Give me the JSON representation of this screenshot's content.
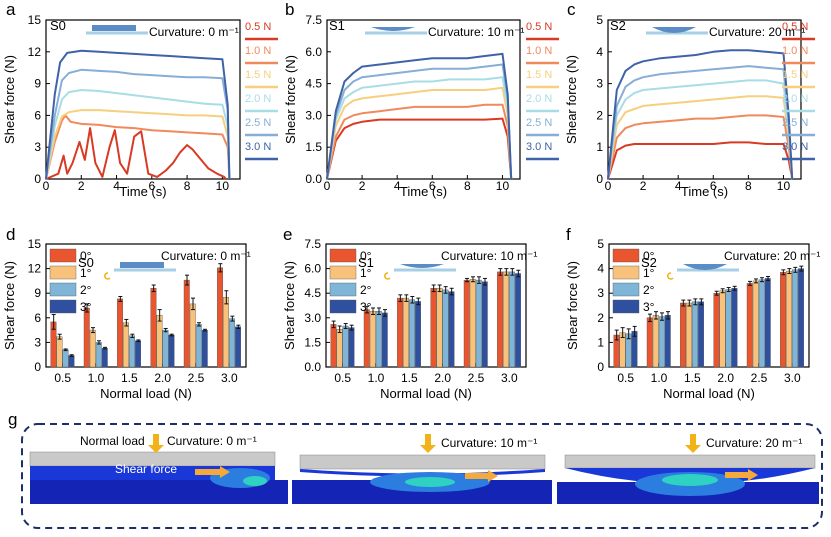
{
  "colors": {
    "c0": "#d93a23",
    "c1": "#f08a5c",
    "c2": "#f6cf7f",
    "c3": "#a9dde5",
    "c4": "#86aed6",
    "c5": "#3f63a8",
    "bar0": "#e8552f",
    "bar1": "#f8c27a",
    "bar2": "#7fb5d6",
    "bar3": "#2f4f9f"
  },
  "chart_data": [
    {
      "panel": "a",
      "type": "line",
      "sample": "S0",
      "curvature": "Curvature: 0 m⁻¹",
      "xlabel": "Time (s)",
      "ylabel": "Shear force (N)",
      "xlim": [
        0,
        11
      ],
      "ylim": [
        0,
        15
      ],
      "xticks": [
        "0",
        "2",
        "4",
        "6",
        "8",
        "10"
      ],
      "yticks": [
        "0",
        "3",
        "6",
        "9",
        "12",
        "15"
      ],
      "legend": [
        "0.5 N",
        "1.0 N",
        "1.5 N",
        "2.0 N",
        "2.5 N",
        "3.0 N"
      ],
      "series": [
        {
          "name": "0.5 N",
          "x": [
            0,
            0.7,
            1.0,
            1.2,
            1.5,
            1.9,
            2.2,
            2.5,
            2.8,
            3.2,
            3.6,
            3.9,
            4.2,
            4.6,
            5.0,
            5.4,
            5.8,
            6.3,
            6.8,
            7.2,
            7.6,
            8.0,
            8.3,
            8.7,
            9.2,
            9.7,
            10.1,
            10.2
          ],
          "y": [
            0,
            0.5,
            2.2,
            0.5,
            1.5,
            3.5,
            1.8,
            4.8,
            1.5,
            0.2,
            3.0,
            4.6,
            1.5,
            0.5,
            4.0,
            4.5,
            0.5,
            0.2,
            0.8,
            1.5,
            2.5,
            3.2,
            2.8,
            2.0,
            1.0,
            0.5,
            0.2,
            0
          ]
        },
        {
          "name": "1.0 N",
          "x": [
            0,
            0.5,
            0.9,
            1.1,
            1.4,
            2,
            3,
            4,
            5,
            6,
            7,
            8,
            9,
            10,
            10.3,
            10.4
          ],
          "y": [
            0,
            3.5,
            5.5,
            6.0,
            5.4,
            5.2,
            5.1,
            4.9,
            4.8,
            4.6,
            4.5,
            4.4,
            4.3,
            4.2,
            3.0,
            0
          ]
        },
        {
          "name": "1.5 N",
          "x": [
            0,
            0.5,
            0.9,
            1.3,
            2,
            3,
            4,
            5,
            6,
            7,
            8,
            9,
            10,
            10.3,
            10.4
          ],
          "y": [
            0,
            4.0,
            5.9,
            6.3,
            6.5,
            6.5,
            6.4,
            6.3,
            6.2,
            6.1,
            6.0,
            6.0,
            5.9,
            4.0,
            0
          ]
        },
        {
          "name": "2.0 N",
          "x": [
            0,
            0.5,
            0.9,
            1.3,
            2,
            3,
            4,
            5,
            6,
            7,
            8,
            9,
            10,
            10.3,
            10.4
          ],
          "y": [
            0,
            5.0,
            7.5,
            8.2,
            8.4,
            8.3,
            8.1,
            7.9,
            7.7,
            7.5,
            7.3,
            7.1,
            7.0,
            5.0,
            0
          ]
        },
        {
          "name": "2.5 N",
          "x": [
            0,
            0.5,
            0.9,
            1.3,
            2,
            3,
            4,
            5,
            6,
            7,
            8,
            9,
            10,
            10.3,
            10.4
          ],
          "y": [
            0,
            6.0,
            9.3,
            10.0,
            10.3,
            10.2,
            10.1,
            9.9,
            9.8,
            9.7,
            9.6,
            9.6,
            9.5,
            6.5,
            0
          ]
        },
        {
          "name": "3.0 N",
          "x": [
            0,
            0.5,
            0.8,
            1.2,
            2,
            3,
            4,
            5,
            6,
            7,
            8,
            9,
            10,
            10.3,
            10.4
          ],
          "y": [
            0,
            8.0,
            11.0,
            11.9,
            12.1,
            12.0,
            11.9,
            11.8,
            11.7,
            11.6,
            11.5,
            11.4,
            11.3,
            7.0,
            0
          ]
        }
      ]
    },
    {
      "panel": "b",
      "type": "line",
      "sample": "S1",
      "curvature": "Curvature: 10 m⁻¹",
      "xlabel": "Time (s)",
      "ylabel": "Shear force (N)",
      "xlim": [
        0,
        11
      ],
      "ylim": [
        0,
        7.5
      ],
      "xticks": [
        "0",
        "2",
        "4",
        "6",
        "8",
        "10"
      ],
      "yticks": [
        "0.0",
        "1.5",
        "3.0",
        "4.5",
        "6.0",
        "7.5"
      ],
      "legend": [
        "0.5 N",
        "1.0 N",
        "1.5 N",
        "2.0 N",
        "2.5 N",
        "3.0 N"
      ],
      "series": [
        {
          "name": "0.5 N",
          "x": [
            0,
            0.5,
            1.0,
            1.5,
            2,
            3,
            4,
            5,
            6,
            7,
            8,
            9,
            10,
            10.3,
            10.5
          ],
          "y": [
            0,
            1.8,
            2.4,
            2.6,
            2.7,
            2.8,
            2.8,
            2.8,
            2.8,
            2.8,
            2.8,
            2.8,
            2.85,
            2.0,
            0
          ]
        },
        {
          "name": "1.0 N",
          "x": [
            0,
            0.5,
            1.0,
            1.5,
            2,
            3,
            4,
            5,
            6,
            7,
            8,
            9,
            10,
            10.3,
            10.5
          ],
          "y": [
            0,
            2.0,
            2.8,
            3.0,
            3.1,
            3.2,
            3.3,
            3.4,
            3.4,
            3.4,
            3.4,
            3.5,
            3.5,
            2.5,
            0
          ]
        },
        {
          "name": "1.5 N",
          "x": [
            0,
            0.5,
            1.0,
            1.5,
            2,
            3,
            4,
            5,
            6,
            7,
            8,
            9,
            10,
            10.3,
            10.5
          ],
          "y": [
            0,
            2.5,
            3.4,
            3.7,
            3.8,
            3.9,
            4.0,
            4.1,
            4.2,
            4.2,
            4.2,
            4.2,
            4.3,
            3.0,
            0
          ]
        },
        {
          "name": "2.0 N",
          "x": [
            0,
            0.5,
            1.0,
            1.5,
            2,
            3,
            4,
            5,
            6,
            7,
            8,
            9,
            10,
            10.3,
            10.5
          ],
          "y": [
            0,
            2.8,
            3.8,
            4.1,
            4.3,
            4.4,
            4.5,
            4.6,
            4.6,
            4.7,
            4.7,
            4.7,
            4.8,
            3.4,
            0
          ]
        },
        {
          "name": "2.5 N",
          "x": [
            0,
            0.5,
            1.0,
            1.5,
            2,
            3,
            4,
            5,
            6,
            7,
            8,
            9,
            10,
            10.3,
            10.5
          ],
          "y": [
            0,
            3.0,
            4.2,
            4.6,
            4.8,
            4.9,
            5.0,
            5.1,
            5.2,
            5.2,
            5.2,
            5.3,
            5.4,
            3.8,
            0
          ]
        },
        {
          "name": "3.0 N",
          "x": [
            0,
            0.5,
            1.0,
            1.5,
            2,
            3,
            4,
            5,
            6,
            7,
            8,
            9,
            10,
            10.3,
            10.5
          ],
          "y": [
            0,
            3.2,
            4.6,
            5.0,
            5.3,
            5.4,
            5.5,
            5.6,
            5.7,
            5.7,
            5.7,
            5.8,
            5.9,
            4.0,
            0
          ]
        }
      ]
    },
    {
      "panel": "c",
      "type": "line",
      "sample": "S2",
      "curvature": "Curvature: 20 m⁻¹",
      "xlabel": "Time (s)",
      "ylabel": "Shear force (N)",
      "xlim": [
        0,
        11
      ],
      "ylim": [
        0,
        5
      ],
      "xticks": [
        "0",
        "2",
        "4",
        "6",
        "8",
        "10"
      ],
      "yticks": [
        "0",
        "1",
        "2",
        "3",
        "4",
        "5"
      ],
      "legend": [
        "0.5 N",
        "1.0 N",
        "1.5 N",
        "2.0 N",
        "2.5 N",
        "3.0 N"
      ],
      "series": [
        {
          "name": "0.5 N",
          "x": [
            0,
            0.5,
            1.0,
            1.5,
            2,
            3,
            4,
            5,
            6,
            7,
            8,
            9,
            10,
            10.3,
            10.5
          ],
          "y": [
            0,
            0.9,
            1.05,
            1.1,
            1.1,
            1.1,
            1.1,
            1.1,
            1.1,
            1.15,
            1.15,
            1.1,
            1.1,
            0.6,
            0
          ]
        },
        {
          "name": "1.0 N",
          "x": [
            0,
            0.5,
            1.0,
            1.5,
            2,
            3,
            4,
            5,
            6,
            7,
            8,
            9,
            10,
            10.3,
            10.5
          ],
          "y": [
            0,
            1.3,
            1.6,
            1.7,
            1.75,
            1.8,
            1.85,
            1.9,
            1.9,
            1.95,
            2.0,
            2.0,
            1.95,
            1.0,
            0
          ]
        },
        {
          "name": "1.5 N",
          "x": [
            0,
            0.5,
            1.0,
            1.5,
            2,
            3,
            4,
            5,
            6,
            7,
            8,
            9,
            10,
            10.3,
            10.5
          ],
          "y": [
            0,
            1.7,
            2.1,
            2.2,
            2.3,
            2.35,
            2.4,
            2.45,
            2.5,
            2.55,
            2.6,
            2.6,
            2.55,
            1.3,
            0
          ]
        },
        {
          "name": "2.0 N",
          "x": [
            0,
            0.5,
            1.0,
            1.5,
            2,
            3,
            4,
            5,
            6,
            7,
            8,
            9,
            10,
            10.3,
            10.5
          ],
          "y": [
            0,
            2.0,
            2.5,
            2.7,
            2.8,
            2.85,
            2.9,
            2.95,
            3.0,
            3.05,
            3.1,
            3.1,
            3.0,
            1.5,
            0
          ]
        },
        {
          "name": "2.5 N",
          "x": [
            0,
            0.5,
            1.0,
            1.5,
            2,
            3,
            4,
            5,
            6,
            7,
            8,
            9,
            10,
            10.3,
            10.5
          ],
          "y": [
            0,
            2.3,
            2.9,
            3.1,
            3.2,
            3.3,
            3.35,
            3.4,
            3.45,
            3.5,
            3.55,
            3.5,
            3.45,
            1.8,
            0
          ]
        },
        {
          "name": "3.0 N",
          "x": [
            0,
            0.5,
            1.0,
            1.5,
            2,
            3,
            4,
            5,
            6,
            7,
            8,
            9,
            10,
            10.3,
            10.5
          ],
          "y": [
            0,
            2.8,
            3.4,
            3.6,
            3.7,
            3.8,
            3.85,
            3.9,
            4.0,
            4.05,
            4.05,
            4.0,
            3.95,
            2.0,
            0
          ]
        }
      ]
    },
    {
      "panel": "d",
      "type": "bar",
      "sample": "S0",
      "curvature": "Curvature: 0 m⁻¹",
      "xlabel": "Normal load (N)",
      "ylabel": "Shear force (N)",
      "ylim": [
        0,
        15
      ],
      "yticks": [
        "0",
        "3",
        "6",
        "9",
        "12",
        "15"
      ],
      "categories": [
        "0.5",
        "1.0",
        "1.5",
        "2.0",
        "2.5",
        "3.0"
      ],
      "legend": [
        "0°",
        "1°",
        "2°",
        "3°"
      ],
      "series": [
        {
          "name": "0°",
          "values": [
            5.5,
            7.2,
            8.3,
            9.6,
            10.6,
            12.1
          ],
          "errors": [
            0.9,
            0.5,
            0.3,
            0.4,
            0.6,
            0.5
          ]
        },
        {
          "name": "1°",
          "values": [
            3.7,
            4.5,
            5.4,
            6.3,
            7.7,
            8.5
          ],
          "errors": [
            0.3,
            0.3,
            0.4,
            0.7,
            0.7,
            0.8
          ]
        },
        {
          "name": "2°",
          "values": [
            2.1,
            3.0,
            3.8,
            4.5,
            5.2,
            5.9
          ],
          "errors": [
            0.1,
            0.2,
            0.2,
            0.2,
            0.2,
            0.3
          ]
        },
        {
          "name": "3°",
          "values": [
            1.4,
            2.3,
            3.2,
            3.9,
            4.5,
            4.9
          ],
          "errors": [
            0.1,
            0.1,
            0.1,
            0.1,
            0.1,
            0.2
          ]
        }
      ]
    },
    {
      "panel": "e",
      "type": "bar",
      "sample": "S1",
      "curvature": "Curvature: 10 m⁻¹",
      "xlabel": "Normal load (N)",
      "ylabel": "Shear force (N)",
      "ylim": [
        0,
        7.5
      ],
      "yticks": [
        "0.0",
        "1.5",
        "3.0",
        "4.5",
        "6.0",
        "7.5"
      ],
      "categories": [
        "0.5",
        "1.0",
        "1.5",
        "2.0",
        "2.5",
        "3.0"
      ],
      "legend": [
        "0°",
        "1°",
        "2°",
        "3°"
      ],
      "series": [
        {
          "name": "0°",
          "values": [
            2.6,
            3.5,
            4.2,
            4.8,
            5.3,
            5.8
          ],
          "errors": [
            0.2,
            0.2,
            0.2,
            0.2,
            0.1,
            0.2
          ]
        },
        {
          "name": "1°",
          "values": [
            2.3,
            3.4,
            4.2,
            4.8,
            5.35,
            5.8
          ],
          "errors": [
            0.2,
            0.2,
            0.2,
            0.2,
            0.15,
            0.2
          ]
        },
        {
          "name": "2°",
          "values": [
            2.5,
            3.4,
            4.1,
            4.7,
            5.3,
            5.8
          ],
          "errors": [
            0.15,
            0.2,
            0.2,
            0.2,
            0.2,
            0.2
          ]
        },
        {
          "name": "3°",
          "values": [
            2.4,
            3.3,
            4.0,
            4.6,
            5.2,
            5.7
          ],
          "errors": [
            0.15,
            0.2,
            0.2,
            0.2,
            0.2,
            0.2
          ]
        }
      ]
    },
    {
      "panel": "f",
      "type": "bar",
      "sample": "S2",
      "curvature": "Curvature: 20 m⁻¹",
      "xlabel": "Normal load (N)",
      "ylabel": "Shear force (N)",
      "ylim": [
        0,
        5
      ],
      "yticks": [
        "0",
        "1",
        "2",
        "3",
        "4",
        "5"
      ],
      "categories": [
        "0.5",
        "1.0",
        "1.5",
        "2.0",
        "2.5",
        "3.0"
      ],
      "legend": [
        "0°",
        "1°",
        "2°",
        "3°"
      ],
      "series": [
        {
          "name": "0°",
          "values": [
            1.3,
            2.0,
            2.6,
            3.0,
            3.4,
            3.85
          ],
          "errors": [
            0.2,
            0.15,
            0.12,
            0.08,
            0.08,
            0.1
          ]
        },
        {
          "name": "1°",
          "values": [
            1.4,
            2.1,
            2.6,
            3.1,
            3.5,
            3.9
          ],
          "errors": [
            0.2,
            0.15,
            0.12,
            0.08,
            0.08,
            0.1
          ]
        },
        {
          "name": "2°",
          "values": [
            1.35,
            2.05,
            2.65,
            3.15,
            3.55,
            3.95
          ],
          "errors": [
            0.2,
            0.15,
            0.12,
            0.08,
            0.08,
            0.1
          ]
        },
        {
          "name": "3°",
          "values": [
            1.45,
            2.1,
            2.65,
            3.2,
            3.6,
            4.0
          ],
          "errors": [
            0.2,
            0.15,
            0.12,
            0.08,
            0.08,
            0.1
          ]
        }
      ]
    }
  ],
  "panel_g": {
    "letter": "g",
    "normal_load": "Normal load",
    "shear_force": "Shear force",
    "curv0": "Curvature: 0 m⁻¹",
    "curv1": "Curvature: 10 m⁻¹",
    "curv2": "Curvature: 20 m⁻¹"
  }
}
